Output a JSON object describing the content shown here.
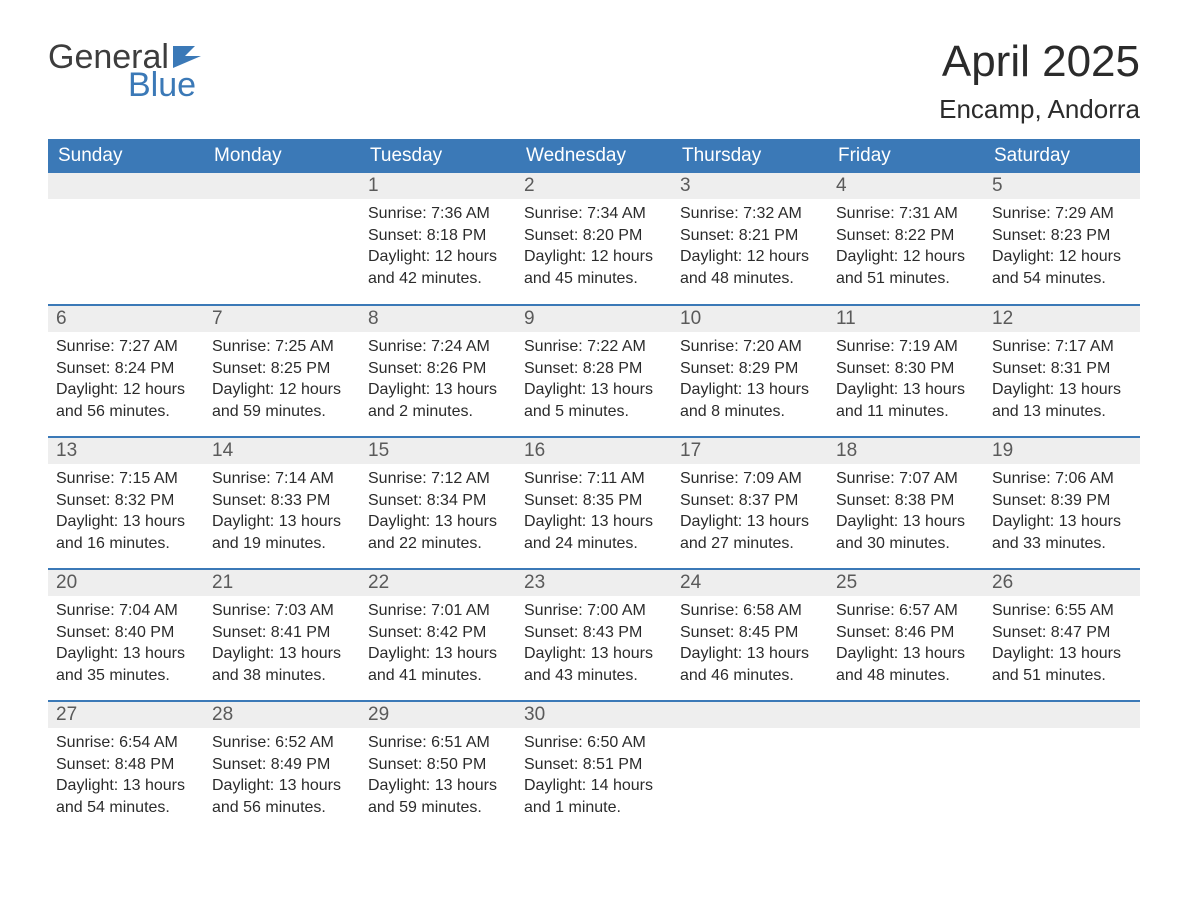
{
  "logo": {
    "word1": "General",
    "word2": "Blue"
  },
  "title": "April 2025",
  "location": "Encamp, Andorra",
  "style": {
    "header_bg": "#3b79b7",
    "header_fg": "#ffffff",
    "daynum_bg": "#eeeeee",
    "daynum_fg": "#5a5a5a",
    "week_border": "#3b79b7",
    "body_fg": "#2b2b2b",
    "page_bg": "#ffffff",
    "title_fontsize": 44,
    "location_fontsize": 26,
    "th_fontsize": 19,
    "daynum_fontsize": 19,
    "body_fontsize": 16
  },
  "day_headers": [
    "Sunday",
    "Monday",
    "Tuesday",
    "Wednesday",
    "Thursday",
    "Friday",
    "Saturday"
  ],
  "weeks": [
    [
      null,
      null,
      {
        "n": "1",
        "sunrise": "7:36 AM",
        "sunset": "8:18 PM",
        "daylight": "12 hours and 42 minutes."
      },
      {
        "n": "2",
        "sunrise": "7:34 AM",
        "sunset": "8:20 PM",
        "daylight": "12 hours and 45 minutes."
      },
      {
        "n": "3",
        "sunrise": "7:32 AM",
        "sunset": "8:21 PM",
        "daylight": "12 hours and 48 minutes."
      },
      {
        "n": "4",
        "sunrise": "7:31 AM",
        "sunset": "8:22 PM",
        "daylight": "12 hours and 51 minutes."
      },
      {
        "n": "5",
        "sunrise": "7:29 AM",
        "sunset": "8:23 PM",
        "daylight": "12 hours and 54 minutes."
      }
    ],
    [
      {
        "n": "6",
        "sunrise": "7:27 AM",
        "sunset": "8:24 PM",
        "daylight": "12 hours and 56 minutes."
      },
      {
        "n": "7",
        "sunrise": "7:25 AM",
        "sunset": "8:25 PM",
        "daylight": "12 hours and 59 minutes."
      },
      {
        "n": "8",
        "sunrise": "7:24 AM",
        "sunset": "8:26 PM",
        "daylight": "13 hours and 2 minutes."
      },
      {
        "n": "9",
        "sunrise": "7:22 AM",
        "sunset": "8:28 PM",
        "daylight": "13 hours and 5 minutes."
      },
      {
        "n": "10",
        "sunrise": "7:20 AM",
        "sunset": "8:29 PM",
        "daylight": "13 hours and 8 minutes."
      },
      {
        "n": "11",
        "sunrise": "7:19 AM",
        "sunset": "8:30 PM",
        "daylight": "13 hours and 11 minutes."
      },
      {
        "n": "12",
        "sunrise": "7:17 AM",
        "sunset": "8:31 PM",
        "daylight": "13 hours and 13 minutes."
      }
    ],
    [
      {
        "n": "13",
        "sunrise": "7:15 AM",
        "sunset": "8:32 PM",
        "daylight": "13 hours and 16 minutes."
      },
      {
        "n": "14",
        "sunrise": "7:14 AM",
        "sunset": "8:33 PM",
        "daylight": "13 hours and 19 minutes."
      },
      {
        "n": "15",
        "sunrise": "7:12 AM",
        "sunset": "8:34 PM",
        "daylight": "13 hours and 22 minutes."
      },
      {
        "n": "16",
        "sunrise": "7:11 AM",
        "sunset": "8:35 PM",
        "daylight": "13 hours and 24 minutes."
      },
      {
        "n": "17",
        "sunrise": "7:09 AM",
        "sunset": "8:37 PM",
        "daylight": "13 hours and 27 minutes."
      },
      {
        "n": "18",
        "sunrise": "7:07 AM",
        "sunset": "8:38 PM",
        "daylight": "13 hours and 30 minutes."
      },
      {
        "n": "19",
        "sunrise": "7:06 AM",
        "sunset": "8:39 PM",
        "daylight": "13 hours and 33 minutes."
      }
    ],
    [
      {
        "n": "20",
        "sunrise": "7:04 AM",
        "sunset": "8:40 PM",
        "daylight": "13 hours and 35 minutes."
      },
      {
        "n": "21",
        "sunrise": "7:03 AM",
        "sunset": "8:41 PM",
        "daylight": "13 hours and 38 minutes."
      },
      {
        "n": "22",
        "sunrise": "7:01 AM",
        "sunset": "8:42 PM",
        "daylight": "13 hours and 41 minutes."
      },
      {
        "n": "23",
        "sunrise": "7:00 AM",
        "sunset": "8:43 PM",
        "daylight": "13 hours and 43 minutes."
      },
      {
        "n": "24",
        "sunrise": "6:58 AM",
        "sunset": "8:45 PM",
        "daylight": "13 hours and 46 minutes."
      },
      {
        "n": "25",
        "sunrise": "6:57 AM",
        "sunset": "8:46 PM",
        "daylight": "13 hours and 48 minutes."
      },
      {
        "n": "26",
        "sunrise": "6:55 AM",
        "sunset": "8:47 PM",
        "daylight": "13 hours and 51 minutes."
      }
    ],
    [
      {
        "n": "27",
        "sunrise": "6:54 AM",
        "sunset": "8:48 PM",
        "daylight": "13 hours and 54 minutes."
      },
      {
        "n": "28",
        "sunrise": "6:52 AM",
        "sunset": "8:49 PM",
        "daylight": "13 hours and 56 minutes."
      },
      {
        "n": "29",
        "sunrise": "6:51 AM",
        "sunset": "8:50 PM",
        "daylight": "13 hours and 59 minutes."
      },
      {
        "n": "30",
        "sunrise": "6:50 AM",
        "sunset": "8:51 PM",
        "daylight": "14 hours and 1 minute."
      },
      null,
      null,
      null
    ]
  ],
  "labels": {
    "sunrise_prefix": "Sunrise: ",
    "sunset_prefix": "Sunset: ",
    "daylight_prefix": "Daylight: "
  }
}
